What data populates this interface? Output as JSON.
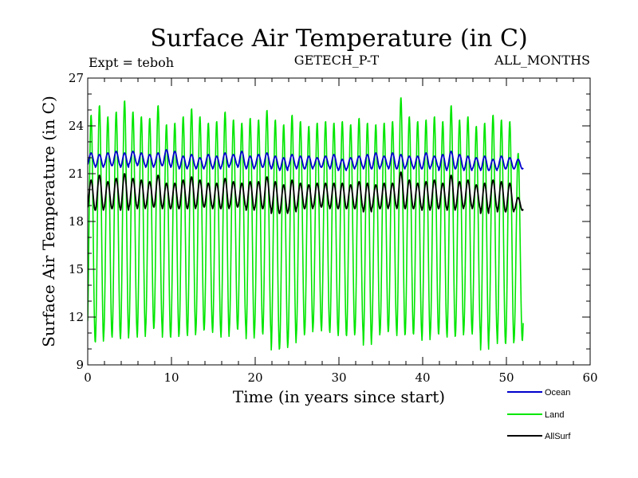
{
  "chart_data": {
    "type": "line",
    "title": "Surface Air Temperature (in C)",
    "subtitle_left": "Expt = teboh",
    "subtitle_center": "GETECH_P-T",
    "subtitle_right": "ALL_MONTHS",
    "xlabel": "Time (in years since start)",
    "ylabel": "Surface Air Temperature (in C)",
    "xlim": [
      0,
      60
    ],
    "ylim": [
      9,
      27
    ],
    "x_ticks": [
      0,
      10,
      20,
      30,
      40,
      50,
      60
    ],
    "y_ticks": [
      9,
      12,
      15,
      18,
      21,
      24,
      27
    ],
    "x_tick_labels": [
      "0",
      "10",
      "20",
      "30",
      "40",
      "50",
      "60"
    ],
    "y_tick_labels": [
      "9",
      "12",
      "15",
      "18",
      "21",
      "24",
      "27"
    ],
    "x_minor_step": 2,
    "y_minor_step": 1,
    "grid": false,
    "legend_position": "bottom-right",
    "years": 52,
    "series": [
      {
        "name": "Ocean",
        "color": "#0000cc",
        "period_years": 1,
        "peak_years": [
          0.4,
          1.4,
          2.4,
          3.4,
          4.4,
          5.4,
          6.4,
          7.4,
          8.4,
          9.4,
          10.4,
          11.4,
          12.4,
          13.4,
          14.4,
          15.4,
          16.4,
          17.4,
          18.4,
          19.4,
          20.4,
          21.4,
          22.4,
          23.4,
          24.4,
          25.4,
          26.4,
          27.4,
          28.4,
          29.4,
          30.4,
          31.4,
          32.4,
          33.4,
          34.4,
          35.4,
          36.4,
          37.4,
          38.4,
          39.4,
          40.4,
          41.4,
          42.4,
          43.4,
          44.4,
          45.4,
          46.4,
          47.4,
          48.4,
          49.4,
          50.4,
          51.4
        ],
        "annual_max": [
          22.3,
          22.2,
          22.3,
          22.4,
          22.3,
          22.4,
          22.3,
          22.2,
          22.3,
          22.5,
          22.4,
          22.1,
          22.2,
          22.0,
          22.2,
          22.1,
          22.3,
          22.2,
          22.4,
          22.1,
          22.2,
          22.3,
          22.1,
          22.0,
          22.2,
          22.1,
          22.1,
          22.0,
          22.1,
          22.2,
          21.9,
          22.0,
          22.1,
          22.2,
          22.3,
          22.1,
          22.3,
          22.2,
          22.1,
          22.1,
          22.3,
          22.1,
          22.2,
          22.4,
          22.2,
          22.1,
          22.0,
          22.1,
          21.9,
          22.1,
          22.0,
          21.9
        ],
        "annual_min": [
          21.5,
          21.4,
          21.5,
          21.5,
          21.4,
          21.6,
          21.5,
          21.4,
          21.5,
          21.5,
          21.4,
          21.3,
          21.4,
          21.3,
          21.4,
          21.3,
          21.4,
          21.5,
          21.4,
          21.3,
          21.4,
          21.4,
          21.3,
          21.2,
          21.4,
          21.3,
          21.3,
          21.4,
          21.4,
          21.3,
          21.2,
          21.3,
          21.4,
          21.3,
          21.3,
          21.4,
          21.3,
          21.3,
          21.4,
          21.3,
          21.3,
          21.4,
          21.2,
          21.3,
          21.3,
          21.2,
          21.3,
          21.2,
          21.2,
          21.3,
          21.3,
          21.3
        ]
      },
      {
        "name": "Land",
        "color": "#00e600",
        "period_years": 1,
        "peak_years": [
          0.4,
          1.4,
          2.4,
          3.4,
          4.4,
          5.4,
          6.4,
          7.4,
          8.4,
          9.4,
          10.4,
          11.4,
          12.4,
          13.4,
          14.4,
          15.4,
          16.4,
          17.4,
          18.4,
          19.4,
          20.4,
          21.4,
          22.4,
          23.4,
          24.4,
          25.4,
          26.4,
          27.4,
          28.4,
          29.4,
          30.4,
          31.4,
          32.4,
          33.4,
          34.4,
          35.4,
          36.4,
          37.4,
          38.4,
          39.4,
          40.4,
          41.4,
          42.4,
          43.4,
          44.4,
          45.4,
          46.4,
          47.4,
          48.4,
          49.4,
          50.4,
          51.4
        ],
        "annual_max": [
          24.7,
          25.3,
          24.6,
          24.9,
          25.6,
          24.9,
          24.6,
          24.5,
          25.3,
          24.1,
          24.2,
          24.6,
          25.1,
          24.6,
          24.2,
          24.3,
          24.9,
          24.4,
          24.2,
          24.5,
          24.4,
          25.0,
          24.4,
          24.1,
          24.7,
          24.3,
          24.0,
          24.2,
          24.3,
          24.2,
          24.3,
          24.1,
          24.5,
          24.2,
          24.1,
          24.2,
          24.3,
          25.8,
          24.6,
          24.3,
          24.4,
          24.6,
          24.3,
          25.3,
          24.4,
          24.6,
          24.0,
          24.2,
          24.7,
          24.4,
          24.3,
          22.3
        ],
        "annual_min": [
          10.4,
          10.4,
          10.8,
          10.7,
          10.6,
          11.0,
          10.7,
          11.2,
          11.3,
          10.7,
          10.7,
          10.9,
          10.8,
          11.1,
          11.2,
          11.0,
          10.7,
          11.2,
          11.2,
          10.6,
          11.0,
          10.9,
          9.9,
          10.0,
          10.3,
          10.8,
          11.0,
          11.3,
          11.1,
          11.0,
          10.8,
          10.8,
          11.0,
          10.2,
          10.8,
          11.0,
          11.1,
          10.8,
          10.9,
          10.9,
          10.5,
          10.9,
          10.9,
          10.7,
          10.8,
          11.1,
          10.9,
          9.9,
          10.8,
          10.3,
          10.3,
          10.5
        ]
      },
      {
        "name": "AllSurf",
        "color": "#000000",
        "period_years": 1,
        "peak_years": [
          0.4,
          1.4,
          2.4,
          3.4,
          4.4,
          5.4,
          6.4,
          7.4,
          8.4,
          9.4,
          10.4,
          11.4,
          12.4,
          13.4,
          14.4,
          15.4,
          16.4,
          17.4,
          18.4,
          19.4,
          20.4,
          21.4,
          22.4,
          23.4,
          24.4,
          25.4,
          26.4,
          27.4,
          28.4,
          29.4,
          30.4,
          31.4,
          32.4,
          33.4,
          34.4,
          35.4,
          36.4,
          37.4,
          38.4,
          39.4,
          40.4,
          41.4,
          42.4,
          43.4,
          44.4,
          45.4,
          46.4,
          47.4,
          48.4,
          49.4,
          50.4,
          51.4
        ],
        "annual_max": [
          20.6,
          20.9,
          20.5,
          20.7,
          21.0,
          20.7,
          20.6,
          20.5,
          20.9,
          20.4,
          20.4,
          20.6,
          20.8,
          20.6,
          20.4,
          20.4,
          20.7,
          20.5,
          20.4,
          20.5,
          20.5,
          20.8,
          20.5,
          20.3,
          20.6,
          20.4,
          20.3,
          20.4,
          20.4,
          20.4,
          20.4,
          20.3,
          20.5,
          20.4,
          20.3,
          20.4,
          20.4,
          21.1,
          20.6,
          20.4,
          20.5,
          20.6,
          20.4,
          20.9,
          20.5,
          20.6,
          20.3,
          20.4,
          20.6,
          20.5,
          20.4,
          19.5
        ],
        "annual_min": [
          18.7,
          18.7,
          18.8,
          18.8,
          18.7,
          18.9,
          18.8,
          18.9,
          18.9,
          18.8,
          18.8,
          18.8,
          18.8,
          18.9,
          18.9,
          18.8,
          18.8,
          18.9,
          18.9,
          18.7,
          18.8,
          18.8,
          18.5,
          18.5,
          18.6,
          18.8,
          18.8,
          18.9,
          18.9,
          18.8,
          18.8,
          18.8,
          18.8,
          18.6,
          18.8,
          18.8,
          18.9,
          18.8,
          18.8,
          18.8,
          18.7,
          18.8,
          18.8,
          18.7,
          18.8,
          18.9,
          18.8,
          18.5,
          18.8,
          18.6,
          18.6,
          18.7
        ]
      }
    ]
  }
}
